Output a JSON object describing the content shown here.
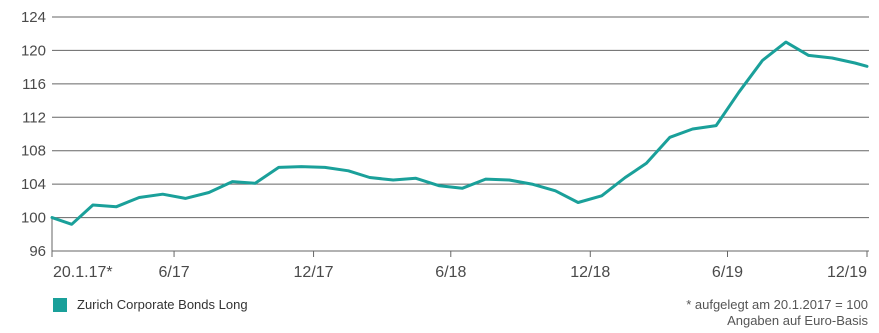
{
  "chart_data": {
    "type": "line",
    "title": "",
    "xlabel": "",
    "ylabel": "",
    "ylim": [
      96,
      124
    ],
    "y_ticks": [
      "124",
      "120",
      "116",
      "112",
      "108",
      "104",
      "100",
      "96"
    ],
    "x_ticks": [
      {
        "label": "20.1.17*",
        "x": "2017-01-20"
      },
      {
        "label": "6/17",
        "x": "2017-06-30"
      },
      {
        "label": "12/17",
        "x": "2017-12-31"
      },
      {
        "label": "6/18",
        "x": "2018-06-30"
      },
      {
        "label": "12/18",
        "x": "2018-12-31"
      },
      {
        "label": "6/19",
        "x": "2019-06-30"
      },
      {
        "label": "12/19",
        "x": "2019-12-31"
      }
    ],
    "grid": "horizontal",
    "colors": {
      "series": "#1aa09a",
      "grid": "#666666"
    },
    "series": [
      {
        "name": "Zurich Corporate Bonds Long",
        "points": [
          {
            "x": "2017-01-20",
            "y": 100.0
          },
          {
            "x": "2017-02-15",
            "y": 99.2
          },
          {
            "x": "2017-03-15",
            "y": 101.5
          },
          {
            "x": "2017-04-15",
            "y": 101.3
          },
          {
            "x": "2017-05-15",
            "y": 102.4
          },
          {
            "x": "2017-06-15",
            "y": 102.8
          },
          {
            "x": "2017-07-15",
            "y": 102.3
          },
          {
            "x": "2017-08-15",
            "y": 103.0
          },
          {
            "x": "2017-09-15",
            "y": 104.3
          },
          {
            "x": "2017-10-15",
            "y": 104.1
          },
          {
            "x": "2017-11-15",
            "y": 106.0
          },
          {
            "x": "2017-12-15",
            "y": 106.1
          },
          {
            "x": "2018-01-15",
            "y": 106.0
          },
          {
            "x": "2018-02-15",
            "y": 105.6
          },
          {
            "x": "2018-03-15",
            "y": 104.8
          },
          {
            "x": "2018-04-15",
            "y": 104.5
          },
          {
            "x": "2018-05-15",
            "y": 104.7
          },
          {
            "x": "2018-06-15",
            "y": 103.8
          },
          {
            "x": "2018-07-15",
            "y": 103.5
          },
          {
            "x": "2018-08-15",
            "y": 104.6
          },
          {
            "x": "2018-09-15",
            "y": 104.5
          },
          {
            "x": "2018-10-15",
            "y": 104.0
          },
          {
            "x": "2018-11-15",
            "y": 103.2
          },
          {
            "x": "2018-12-15",
            "y": 101.8
          },
          {
            "x": "2019-01-15",
            "y": 102.6
          },
          {
            "x": "2019-02-15",
            "y": 104.8
          },
          {
            "x": "2019-03-15",
            "y": 106.5
          },
          {
            "x": "2019-04-15",
            "y": 109.6
          },
          {
            "x": "2019-05-15",
            "y": 110.6
          },
          {
            "x": "2019-06-15",
            "y": 111.0
          },
          {
            "x": "2019-07-15",
            "y": 115.0
          },
          {
            "x": "2019-08-15",
            "y": 118.8
          },
          {
            "x": "2019-09-15",
            "y": 121.0
          },
          {
            "x": "2019-10-15",
            "y": 119.4
          },
          {
            "x": "2019-11-15",
            "y": 119.1
          },
          {
            "x": "2019-12-15",
            "y": 118.5
          },
          {
            "x": "2019-12-31",
            "y": 118.1
          }
        ]
      }
    ],
    "legend": {
      "placement": "bottom-left"
    },
    "notes": [
      "* aufgelegt am 20.1.2017 = 100",
      "Angaben auf Euro-Basis"
    ]
  }
}
